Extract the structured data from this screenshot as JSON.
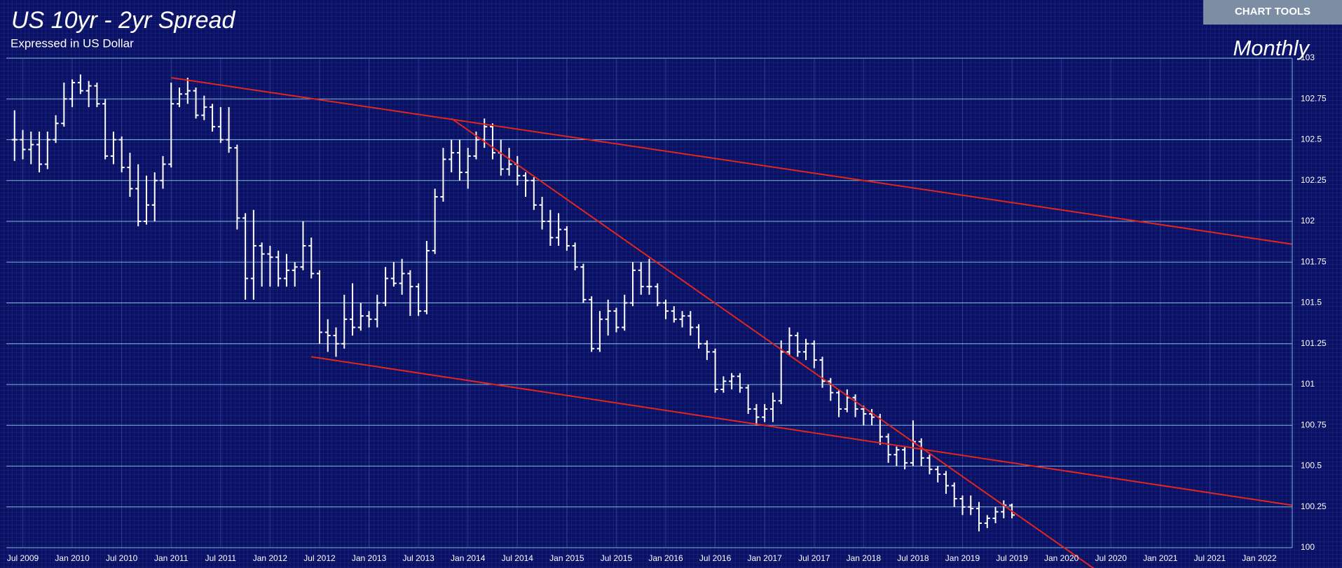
{
  "chart_tools_button": "CHART TOOLS",
  "chart_data": {
    "type": "ohlc",
    "title": "US 10yr - 2yr Spread",
    "subtitle": "Expressed in US Dollar",
    "annotation": "Monthly",
    "color": "#ffffff",
    "grid": true,
    "xlim": [
      "2009-05",
      "2022-05"
    ],
    "ylim": [
      100,
      103
    ],
    "yticks": [
      100,
      100.25,
      100.5,
      100.75,
      101,
      101.25,
      101.5,
      101.75,
      102,
      102.25,
      102.5,
      102.75,
      103
    ],
    "xticks": [
      {
        "value": "2009-07",
        "label": "Jul 2009"
      },
      {
        "value": "2010-01",
        "label": "Jan 2010"
      },
      {
        "value": "2010-07",
        "label": "Jul 2010"
      },
      {
        "value": "2011-01",
        "label": "Jan 2011"
      },
      {
        "value": "2011-07",
        "label": "Jul 2011"
      },
      {
        "value": "2012-01",
        "label": "Jan 2012"
      },
      {
        "value": "2012-07",
        "label": "Jul 2012"
      },
      {
        "value": "2013-01",
        "label": "Jan 2013"
      },
      {
        "value": "2013-07",
        "label": "Jul 2013"
      },
      {
        "value": "2014-01",
        "label": "Jan 2014"
      },
      {
        "value": "2014-07",
        "label": "Jul 2014"
      },
      {
        "value": "2015-01",
        "label": "Jan 2015"
      },
      {
        "value": "2015-07",
        "label": "Jul 2015"
      },
      {
        "value": "2016-01",
        "label": "Jan 2016"
      },
      {
        "value": "2016-07",
        "label": "Jul 2016"
      },
      {
        "value": "2017-01",
        "label": "Jan 2017"
      },
      {
        "value": "2017-07",
        "label": "Jul 2017"
      },
      {
        "value": "2018-01",
        "label": "Jan 2018"
      },
      {
        "value": "2018-07",
        "label": "Jul 2018"
      },
      {
        "value": "2019-01",
        "label": "Jan 2019"
      },
      {
        "value": "2019-07",
        "label": "Jul 2019"
      },
      {
        "value": "2020-01",
        "label": "Jan 2020"
      },
      {
        "value": "2020-07",
        "label": "Jul 2020"
      },
      {
        "value": "2021-01",
        "label": "Jan 2021"
      },
      {
        "value": "2021-07",
        "label": "Jul 2021"
      },
      {
        "value": "2022-01",
        "label": "Jan 2022"
      }
    ],
    "x": [
      "2009-06",
      "2009-07",
      "2009-08",
      "2009-09",
      "2009-10",
      "2009-11",
      "2009-12",
      "2010-01",
      "2010-02",
      "2010-03",
      "2010-04",
      "2010-05",
      "2010-06",
      "2010-07",
      "2010-08",
      "2010-09",
      "2010-10",
      "2010-11",
      "2010-12",
      "2011-01",
      "2011-02",
      "2011-03",
      "2011-04",
      "2011-05",
      "2011-06",
      "2011-07",
      "2011-08",
      "2011-09",
      "2011-10",
      "2011-11",
      "2011-12",
      "2012-01",
      "2012-02",
      "2012-03",
      "2012-04",
      "2012-05",
      "2012-06",
      "2012-07",
      "2012-08",
      "2012-09",
      "2012-10",
      "2012-11",
      "2012-12",
      "2013-01",
      "2013-02",
      "2013-03",
      "2013-04",
      "2013-05",
      "2013-06",
      "2013-07",
      "2013-08",
      "2013-09",
      "2013-10",
      "2013-11",
      "2013-12",
      "2014-01",
      "2014-02",
      "2014-03",
      "2014-04",
      "2014-05",
      "2014-06",
      "2014-07",
      "2014-08",
      "2014-09",
      "2014-10",
      "2014-11",
      "2014-12",
      "2015-01",
      "2015-02",
      "2015-03",
      "2015-04",
      "2015-05",
      "2015-06",
      "2015-07",
      "2015-08",
      "2015-09",
      "2015-10",
      "2015-11",
      "2015-12",
      "2016-01",
      "2016-02",
      "2016-03",
      "2016-04",
      "2016-05",
      "2016-06",
      "2016-07",
      "2016-08",
      "2016-09",
      "2016-10",
      "2016-11",
      "2016-12",
      "2017-01",
      "2017-02",
      "2017-03",
      "2017-04",
      "2017-05",
      "2017-06",
      "2017-07",
      "2017-08",
      "2017-09",
      "2017-10",
      "2017-11",
      "2017-12",
      "2018-01",
      "2018-02",
      "2018-03",
      "2018-04",
      "2018-05",
      "2018-06",
      "2018-07",
      "2018-08",
      "2018-09",
      "2018-10",
      "2018-11",
      "2018-12",
      "2019-01",
      "2019-02",
      "2019-03",
      "2019-04",
      "2019-05",
      "2019-06",
      "2019-07"
    ],
    "open": [
      102.5,
      102.5,
      102.44,
      102.47,
      102.35,
      102.5,
      102.6,
      102.75,
      102.85,
      102.8,
      102.83,
      102.72,
      102.4,
      102.5,
      102.33,
      102.2,
      102.0,
      102.1,
      102.25,
      102.35,
      102.72,
      102.78,
      102.8,
      102.65,
      102.7,
      102.58,
      102.5,
      102.45,
      102.02,
      101.65,
      101.85,
      101.8,
      101.78,
      101.65,
      101.7,
      101.72,
      101.85,
      101.68,
      101.32,
      101.3,
      101.25,
      101.4,
      101.35,
      101.42,
      101.4,
      101.5,
      101.65,
      101.62,
      101.68,
      101.6,
      101.45,
      101.82,
      102.15,
      102.38,
      102.42,
      102.3,
      102.4,
      102.5,
      102.58,
      102.42,
      102.32,
      102.35,
      102.28,
      102.25,
      102.1,
      102.0,
      101.9,
      101.95,
      101.85,
      101.72,
      101.52,
      101.22,
      101.4,
      101.45,
      101.35,
      101.5,
      101.7,
      101.6,
      101.6,
      101.5,
      101.45,
      101.4,
      101.42,
      101.35,
      101.25,
      101.2,
      100.97,
      101.02,
      101.05,
      100.98,
      100.85,
      100.8,
      100.85,
      100.9,
      101.2,
      101.3,
      101.2,
      101.25,
      101.15,
      101.02,
      100.95,
      100.85,
      100.92,
      100.85,
      100.82,
      100.8,
      100.68,
      100.57,
      100.6,
      100.52,
      100.65,
      100.55,
      100.48,
      100.45,
      100.38,
      100.3,
      100.25,
      100.24,
      100.15,
      100.18,
      100.22,
      100.26
    ],
    "high": [
      102.68,
      102.56,
      102.55,
      102.55,
      102.55,
      102.65,
      102.85,
      102.87,
      102.9,
      102.86,
      102.85,
      102.75,
      102.55,
      102.52,
      102.42,
      102.35,
      102.28,
      102.3,
      102.4,
      102.85,
      102.82,
      102.88,
      102.82,
      102.77,
      102.72,
      102.7,
      102.7,
      102.47,
      102.05,
      102.07,
      101.87,
      101.85,
      101.82,
      101.8,
      101.75,
      102.0,
      101.9,
      101.7,
      101.4,
      101.35,
      101.55,
      101.62,
      101.5,
      101.45,
      101.55,
      101.72,
      101.75,
      101.77,
      101.7,
      101.62,
      101.88,
      102.2,
      102.45,
      102.5,
      102.5,
      102.45,
      102.55,
      102.63,
      102.6,
      102.5,
      102.45,
      102.4,
      102.3,
      102.27,
      102.15,
      102.07,
      102.05,
      101.97,
      101.87,
      101.74,
      101.54,
      101.45,
      101.52,
      101.47,
      101.55,
      101.75,
      101.75,
      101.77,
      101.62,
      101.52,
      101.48,
      101.45,
      101.45,
      101.37,
      101.27,
      101.22,
      101.05,
      101.07,
      101.07,
      101.0,
      100.88,
      100.88,
      100.95,
      101.27,
      101.35,
      101.32,
      101.28,
      101.27,
      101.17,
      101.04,
      100.97,
      100.97,
      100.94,
      100.87,
      100.85,
      100.82,
      100.7,
      100.62,
      100.62,
      100.78,
      100.67,
      100.57,
      100.5,
      100.47,
      100.4,
      100.32,
      100.32,
      100.28,
      100.2,
      100.25,
      100.29,
      100.27
    ],
    "low": [
      102.37,
      102.38,
      102.35,
      102.3,
      102.32,
      102.48,
      102.58,
      102.7,
      102.78,
      102.7,
      102.7,
      102.38,
      102.35,
      102.3,
      102.15,
      101.97,
      101.98,
      102.0,
      102.2,
      102.33,
      102.7,
      102.72,
      102.63,
      102.62,
      102.55,
      102.48,
      102.42,
      101.95,
      101.52,
      101.52,
      101.6,
      101.6,
      101.6,
      101.6,
      101.6,
      101.7,
      101.65,
      101.25,
      101.2,
      101.17,
      101.22,
      101.3,
      101.33,
      101.35,
      101.35,
      101.48,
      101.6,
      101.55,
      101.42,
      101.42,
      101.43,
      101.8,
      102.12,
      102.3,
      102.25,
      102.2,
      102.38,
      102.45,
      102.38,
      102.28,
      102.28,
      102.22,
      102.15,
      102.07,
      101.95,
      101.85,
      101.85,
      101.82,
      101.7,
      101.5,
      101.2,
      101.2,
      101.3,
      101.32,
      101.33,
      101.48,
      101.55,
      101.55,
      101.48,
      101.4,
      101.38,
      101.35,
      101.3,
      101.22,
      101.15,
      100.95,
      100.95,
      100.97,
      100.95,
      100.82,
      100.75,
      100.77,
      100.77,
      100.88,
      101.18,
      101.17,
      101.15,
      101.1,
      100.98,
      100.9,
      100.8,
      100.83,
      100.8,
      100.75,
      100.75,
      100.63,
      100.52,
      100.5,
      100.48,
      100.5,
      100.5,
      100.45,
      100.4,
      100.33,
      100.25,
      100.2,
      100.2,
      100.1,
      100.12,
      100.15,
      100.18,
      100.18
    ],
    "close": [
      102.5,
      102.44,
      102.47,
      102.35,
      102.5,
      102.6,
      102.75,
      102.85,
      102.8,
      102.83,
      102.72,
      102.4,
      102.5,
      102.33,
      102.2,
      102.0,
      102.1,
      102.25,
      102.35,
      102.72,
      102.78,
      102.8,
      102.65,
      102.7,
      102.58,
      102.5,
      102.45,
      102.02,
      101.65,
      101.85,
      101.8,
      101.78,
      101.65,
      101.7,
      101.72,
      101.85,
      101.68,
      101.32,
      101.3,
      101.25,
      101.4,
      101.35,
      101.42,
      101.4,
      101.5,
      101.65,
      101.62,
      101.68,
      101.6,
      101.45,
      101.82,
      102.15,
      102.38,
      102.42,
      102.3,
      102.4,
      102.5,
      102.58,
      102.42,
      102.32,
      102.35,
      102.28,
      102.25,
      102.1,
      102.0,
      101.9,
      101.95,
      101.85,
      101.72,
      101.52,
      101.22,
      101.4,
      101.45,
      101.35,
      101.5,
      101.7,
      101.6,
      101.6,
      101.5,
      101.45,
      101.4,
      101.42,
      101.35,
      101.25,
      101.2,
      100.97,
      101.02,
      101.05,
      100.98,
      100.85,
      100.8,
      100.85,
      100.9,
      101.2,
      101.3,
      101.2,
      101.25,
      101.15,
      101.02,
      100.95,
      100.85,
      100.92,
      100.85,
      100.82,
      100.8,
      100.68,
      100.57,
      100.6,
      100.52,
      100.65,
      100.55,
      100.48,
      100.45,
      100.38,
      100.3,
      100.25,
      100.24,
      100.15,
      100.18,
      100.22,
      100.26,
      100.2
    ],
    "trendline_color": "#e0261f",
    "trendlines": [
      {
        "x": [
          "2011-01",
          "2022-05"
        ],
        "y": [
          102.88,
          101.86
        ]
      },
      {
        "x": [
          "2012-06",
          "2022-05"
        ],
        "y": [
          101.17,
          100.26
        ]
      },
      {
        "x": [
          "2013-11",
          "2020-05"
        ],
        "y": [
          102.63,
          99.87
        ]
      }
    ]
  }
}
